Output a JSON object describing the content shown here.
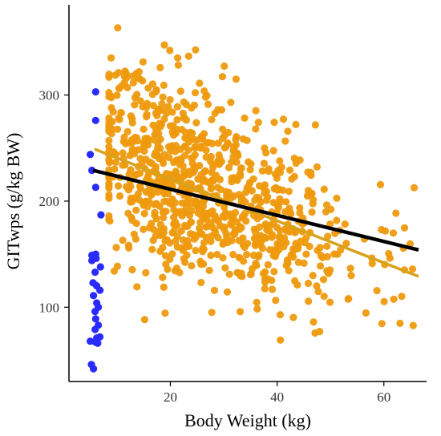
{
  "chart_data": {
    "type": "scatter",
    "title": "",
    "xlabel": "Body Weight (kg)",
    "ylabel": "GITwps (g/kg BW)",
    "xlim": [
      1,
      68
    ],
    "ylim": [
      30,
      385
    ],
    "xticks": [
      20,
      40,
      60
    ],
    "yticks": [
      100,
      200,
      300
    ],
    "grid": false,
    "legend": "none",
    "colors": {
      "orange_points": "#ee9a0e",
      "blue_points": "#2a2bff",
      "orange_fit": "#d8a31a",
      "black_fit": "#000000",
      "axis": "#000000"
    },
    "series": [
      {
        "points_generated": true,
        "color": "orange_points",
        "count": 900
      },
      {
        "color": "blue_points",
        "points": [
          [
            6.0,
            303
          ],
          [
            6.0,
            276
          ],
          [
            5.0,
            244
          ],
          [
            5.3,
            229
          ],
          [
            6.0,
            213
          ],
          [
            7.0,
            187
          ],
          [
            6.0,
            150
          ],
          [
            5.3,
            149
          ],
          [
            5.3,
            144
          ],
          [
            6.1,
            146
          ],
          [
            6.9,
            138
          ],
          [
            5.9,
            133
          ],
          [
            5.5,
            123
          ],
          [
            6.2,
            120
          ],
          [
            6.8,
            116
          ],
          [
            5.6,
            111
          ],
          [
            6.2,
            104
          ],
          [
            6.5,
            100
          ],
          [
            5.9,
            96
          ],
          [
            6.0,
            89
          ],
          [
            6.5,
            83
          ],
          [
            5.9,
            79
          ],
          [
            6.8,
            72
          ],
          [
            6.2,
            71
          ],
          [
            5.0,
            68
          ],
          [
            6.0,
            67
          ],
          [
            6.4,
            66
          ],
          [
            5.2,
            46
          ],
          [
            5.6,
            42
          ]
        ],
        "segment": [
          [
            5.7,
            122
          ],
          [
            6.4,
            123
          ]
        ]
      }
    ],
    "fit_lines": [
      {
        "color": "orange_fit",
        "x": [
          5.8,
          66.5
        ],
        "y": [
          249,
          129
        ]
      },
      {
        "color": "black_fit",
        "x": [
          5.5,
          66.5
        ],
        "y": [
          229,
          154
        ]
      }
    ]
  }
}
